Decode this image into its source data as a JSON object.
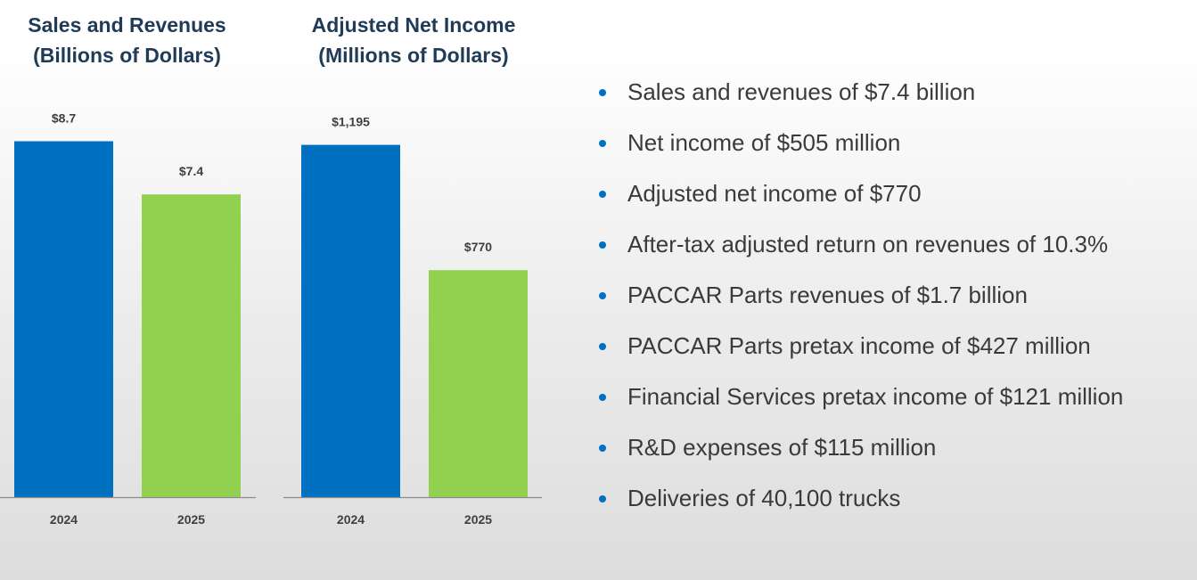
{
  "chart_data": [
    {
      "type": "bar",
      "title": "Sales and Revenues",
      "subtitle": "(Billions of Dollars)",
      "categories": [
        "2024",
        "2025"
      ],
      "values": [
        8.7,
        7.4
      ],
      "data_labels": [
        "$8.7",
        "$7.4"
      ],
      "bar_colors": [
        "#0070c0",
        "#92d050"
      ],
      "ylim": [
        0,
        9.8
      ],
      "grid": false,
      "legend": "none"
    },
    {
      "type": "bar",
      "title": "Adjusted Net Income",
      "subtitle": "(Millions of Dollars)",
      "categories": [
        "2024",
        "2025"
      ],
      "values": [
        1195,
        770
      ],
      "data_labels": [
        "$1,195",
        "$770"
      ],
      "bar_colors": [
        "#0070c0",
        "#92d050"
      ],
      "ylim": [
        0,
        1360
      ],
      "grid": false,
      "legend": "none"
    }
  ],
  "highlights": [
    "Sales and revenues of $7.4 billion",
    "Net income of $505 million",
    "Adjusted net income of $770",
    "After-tax adjusted return on revenues of 10.3%",
    "PACCAR Parts revenues of $1.7 billion",
    "PACCAR Parts pretax income of $427 million",
    "Financial Services pretax income of $121 million",
    "R&D expenses of $115 million",
    "Deliveries of 40,100 trucks"
  ],
  "colors": {
    "title_text": "#1f3b57",
    "bullet": "#0070c0",
    "body_text": "#3a3a3a"
  }
}
